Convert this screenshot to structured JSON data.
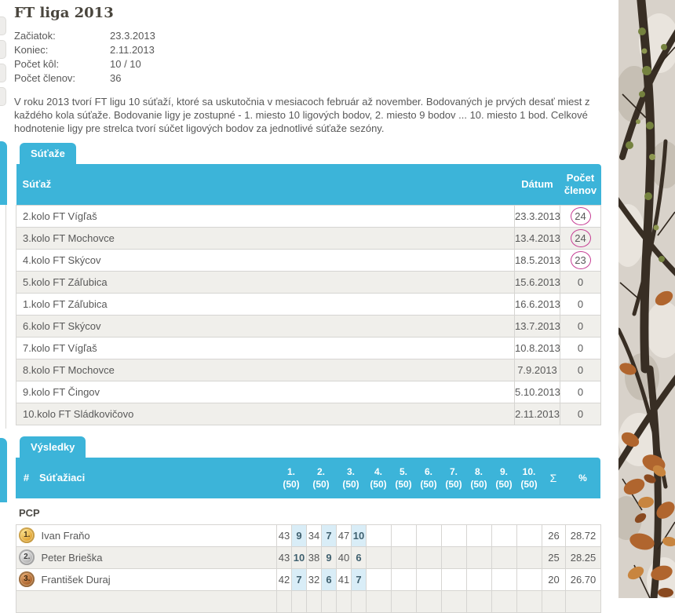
{
  "colors": {
    "accent": "#3cb4d9",
    "badge_outline": "#c63d94",
    "points_cell_bg": "#d9edf7",
    "row_alt_bg": "#f0efeb",
    "table_border": "#d6d5d2",
    "text": "#585858"
  },
  "header": {
    "title": "FT liga 2013",
    "info": [
      {
        "label": "Začiatok:",
        "value": "23.3.2013"
      },
      {
        "label": "Koniec:",
        "value": "2.11.2013"
      },
      {
        "label": "Počet kôl:",
        "value": "10 / 10"
      },
      {
        "label": "Počet členov:",
        "value": "36"
      }
    ],
    "description": "V roku 2013 tvorí FT ligu 10 súťaží, ktoré sa uskutočnia v mesiacoch február až november. Bodovaných je prvých desať miest z každého kola súťaže. Bodovanie ligy je zostupné - 1. miesto 10 ligových bodov, 2. miesto 9 bodov ... 10. miesto 1 bod. Celkové hodnotenie ligy pre strelca tvorí súčet ligových bodov za jednotlivé súťaže sezóny."
  },
  "competitions": {
    "tab_label": "Súťaže",
    "columns": {
      "name": "Súťaž",
      "date": "Dátum",
      "members": "Počet členov"
    },
    "rows": [
      {
        "name": "2.kolo FT Vígľaš",
        "date": "23.3.2013",
        "members": "24",
        "circled": true
      },
      {
        "name": "3.kolo FT Mochovce",
        "date": "13.4.2013",
        "members": "24",
        "circled": true
      },
      {
        "name": "4.kolo FT Skýcov",
        "date": "18.5.2013",
        "members": "23",
        "circled": true
      },
      {
        "name": "5.kolo FT Záľubica",
        "date": "15.6.2013",
        "members": "0",
        "circled": false
      },
      {
        "name": "1.kolo FT Záľubica",
        "date": "16.6.2013",
        "members": "0",
        "circled": false
      },
      {
        "name": "6.kolo FT Skýcov",
        "date": "13.7.2013",
        "members": "0",
        "circled": false
      },
      {
        "name": "7.kolo FT Vígľaš",
        "date": "10.8.2013",
        "members": "0",
        "circled": false
      },
      {
        "name": "8.kolo FT Mochovce",
        "date": "7.9.2013",
        "members": "0",
        "circled": false
      },
      {
        "name": "9.kolo FT Čingov",
        "date": "5.10.2013",
        "members": "0",
        "circled": false
      },
      {
        "name": "10.kolo FT Sládkovičovo",
        "date": "2.11.2013",
        "members": "0",
        "circled": false
      }
    ]
  },
  "results": {
    "tab_label": "Výsledky",
    "columns": {
      "rank": "#",
      "players": "Súťažiaci",
      "rounds": [
        "1.",
        "2.",
        "3.",
        "4.",
        "5.",
        "6.",
        "7.",
        "8.",
        "9.",
        "10."
      ],
      "round_max": "(50)",
      "sum": "Σ",
      "percent": "%"
    },
    "group_label": "PCP",
    "rows": [
      {
        "rank": "1.",
        "medal": "gold",
        "name": "Ivan Fraňo",
        "scores": [
          [
            "43",
            "9"
          ],
          [
            "34",
            "7"
          ],
          [
            "47",
            "10"
          ]
        ],
        "sum": "26",
        "percent": "28.72"
      },
      {
        "rank": "2.",
        "medal": "silver",
        "name": "Peter Brieška",
        "scores": [
          [
            "43",
            "10"
          ],
          [
            "38",
            "9"
          ],
          [
            "40",
            "6"
          ]
        ],
        "sum": "25",
        "percent": "28.25"
      },
      {
        "rank": "3.",
        "medal": "bronze",
        "name": "František Duraj",
        "scores": [
          [
            "42",
            "7"
          ],
          [
            "32",
            "6"
          ],
          [
            "41",
            "7"
          ]
        ],
        "sum": "20",
        "percent": "26.70"
      }
    ]
  },
  "decoration": {
    "background_image": "autumn-camouflage"
  }
}
